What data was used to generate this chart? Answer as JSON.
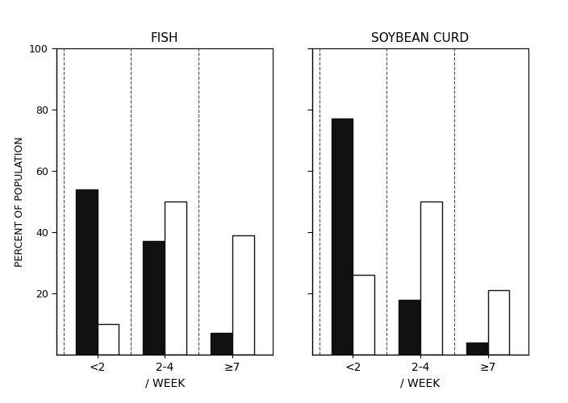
{
  "fish": {
    "title": "FISH",
    "categories": [
      "<2",
      "2-4",
      "≥7"
    ],
    "black_values": [
      54,
      37,
      7
    ],
    "white_values": [
      10,
      50,
      39
    ]
  },
  "soybean": {
    "title": "SOYBEAN CURD",
    "categories": [
      "<2",
      "2-4",
      "≥7"
    ],
    "black_values": [
      77,
      18,
      4
    ],
    "white_values": [
      26,
      50,
      21
    ]
  },
  "ylabel": "PERCENT OF POPULATION",
  "xlabel": "/ WEEK",
  "ylim": [
    0,
    100
  ],
  "yticks": [
    20,
    40,
    60,
    80,
    100
  ],
  "bar_width": 0.32,
  "black_color": "#111111",
  "white_color": "#ffffff",
  "edge_color": "#111111",
  "background_color": "#ffffff",
  "fig_background": "#ffffff"
}
